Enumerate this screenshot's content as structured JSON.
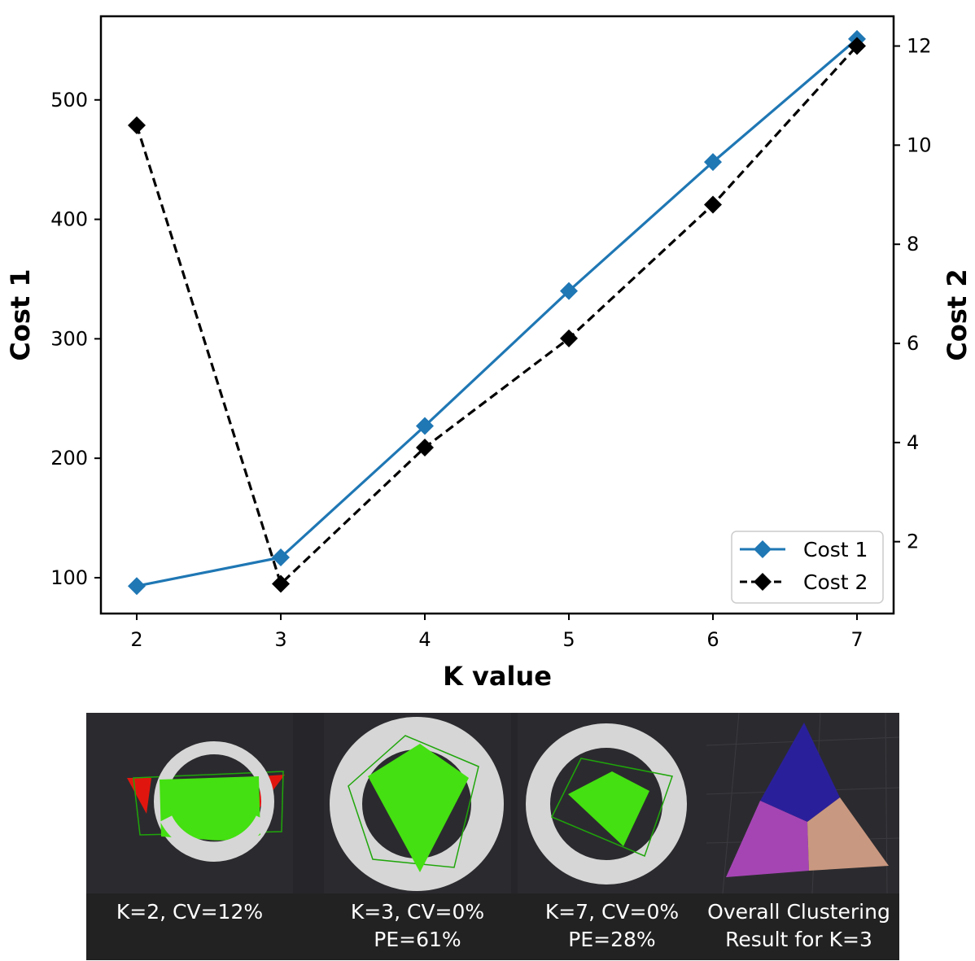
{
  "chart_data": {
    "type": "line",
    "xlabel": "K value",
    "ylabel": "Cost 1",
    "y2label": "Cost 2",
    "x": [
      2,
      3,
      4,
      5,
      6,
      7
    ],
    "x_ticks": [
      2,
      3,
      4,
      5,
      6,
      7
    ],
    "ylim": [
      70,
      570
    ],
    "y_ticks": [
      100,
      200,
      300,
      400,
      500
    ],
    "y2lim": [
      0.55,
      12.6
    ],
    "y2_ticks": [
      2,
      4,
      6,
      8,
      10,
      12
    ],
    "grid": false,
    "legend_position": "bottom-right",
    "series": [
      {
        "name": "Cost 1",
        "axis": "left",
        "color": "#1f77b4",
        "line_style": "solid",
        "marker": "diamond",
        "values": [
          93,
          117,
          227,
          340,
          448,
          551
        ]
      },
      {
        "name": "Cost 2",
        "axis": "right",
        "color": "#000000",
        "line_style": "dashed",
        "marker": "diamond",
        "values": [
          10.4,
          1.15,
          3.9,
          6.1,
          8.8,
          12.0
        ]
      }
    ]
  },
  "captions": [
    {
      "line1": "K=2, CV=12%",
      "line2": ""
    },
    {
      "line1": "K=3, CV=0%",
      "line2": "PE=61%"
    },
    {
      "line1": "K=7, CV=0%",
      "line2": "PE=28%"
    },
    {
      "line1": "Overall Clustering",
      "line2": "Result for K=3"
    }
  ],
  "colors": {
    "panel_background": "#2b2b2f",
    "caption_background": "#222222",
    "ring": "#d6d6d6",
    "cluster_green": "#44e011",
    "cluster_red": "#e0160e",
    "cluster_blue": "#2a1f9a",
    "cluster_magenta": "#a545b4",
    "cluster_peach": "#c99880"
  }
}
